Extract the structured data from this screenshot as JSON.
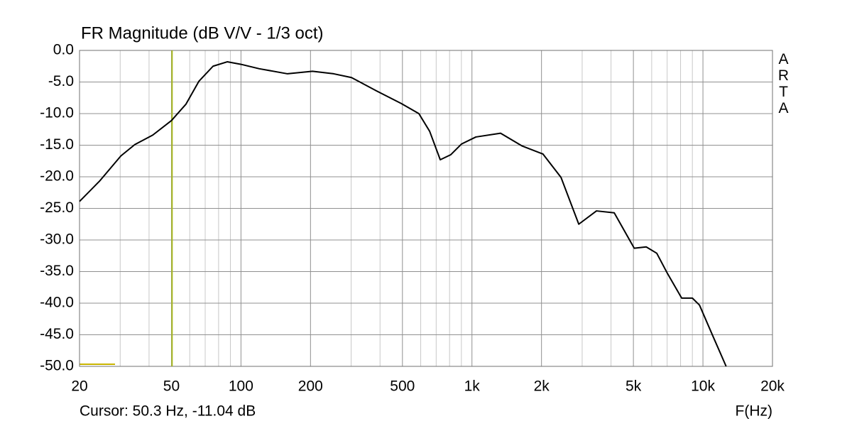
{
  "chart_data": {
    "type": "line",
    "title": "FR Magnitude (dB V/V - 1/3 oct)",
    "x_label": "F(Hz)",
    "watermark": "ARTA",
    "x": [
      20,
      24.4,
      30.2,
      34.7,
      41.5,
      50,
      57.8,
      65.7,
      75.7,
      87.2,
      100,
      120,
      159,
      204,
      252,
      301,
      386,
      494,
      589,
      656,
      729,
      810,
      902,
      1040,
      1330,
      1644,
      2030,
      2430,
      2900,
      3460,
      4130,
      5040,
      5680,
      6310,
      7020,
      8090,
      9000,
      9660,
      11100,
      12600
    ],
    "values": [
      -23.9,
      -20.7,
      -16.7,
      -14.9,
      -13.4,
      -11.1,
      -8.5,
      -4.9,
      -2.5,
      -1.8,
      -2.2,
      -2.9,
      -3.7,
      -3.3,
      -3.7,
      -4.3,
      -6.4,
      -8.4,
      -10.0,
      -12.8,
      -17.3,
      -16.5,
      -14.8,
      -13.7,
      -13.1,
      -15.1,
      -16.4,
      -20.1,
      -27.5,
      -25.4,
      -25.7,
      -31.3,
      -31.1,
      -32.1,
      -35.3,
      -39.2,
      -39.2,
      -40.3,
      -45.4,
      -50
    ],
    "color": "#000000",
    "xscale": "log",
    "xlim": [
      20,
      20000
    ],
    "xticks": [
      20,
      50,
      100,
      200,
      500,
      {
        "value": 1000,
        "label": "1k"
      },
      {
        "value": 2000,
        "label": "2k"
      },
      {
        "value": 5000,
        "label": "5k"
      },
      {
        "value": 10000,
        "label": "10k"
      },
      {
        "value": 20000,
        "label": "20k"
      }
    ],
    "x_minor_ticks": [
      30,
      40,
      60,
      70,
      80,
      90,
      300,
      400,
      600,
      700,
      800,
      900,
      3000,
      4000,
      6000,
      7000,
      8000,
      9000
    ],
    "ylim": [
      -50,
      0
    ],
    "yticks": [
      {
        "value": 0,
        "label": "0.0"
      },
      {
        "value": -5,
        "label": "-5.0"
      },
      {
        "value": -10,
        "label": "-10.0"
      },
      {
        "value": -15,
        "label": "-15.0"
      },
      {
        "value": -20,
        "label": "-20.0"
      },
      {
        "value": -25,
        "label": "-25.0"
      },
      {
        "value": -30,
        "label": "-30.0"
      },
      {
        "value": -35,
        "label": "-35.0"
      },
      {
        "value": -40,
        "label": "-40.0"
      },
      {
        "value": -45,
        "label": "-45.0"
      },
      {
        "value": -50,
        "label": "-50.0"
      }
    ],
    "grid": true,
    "cursor": {
      "label": "Cursor: 50.3 Hz, -11.04 dB",
      "x": 50.3,
      "color": "#a8b820"
    }
  }
}
